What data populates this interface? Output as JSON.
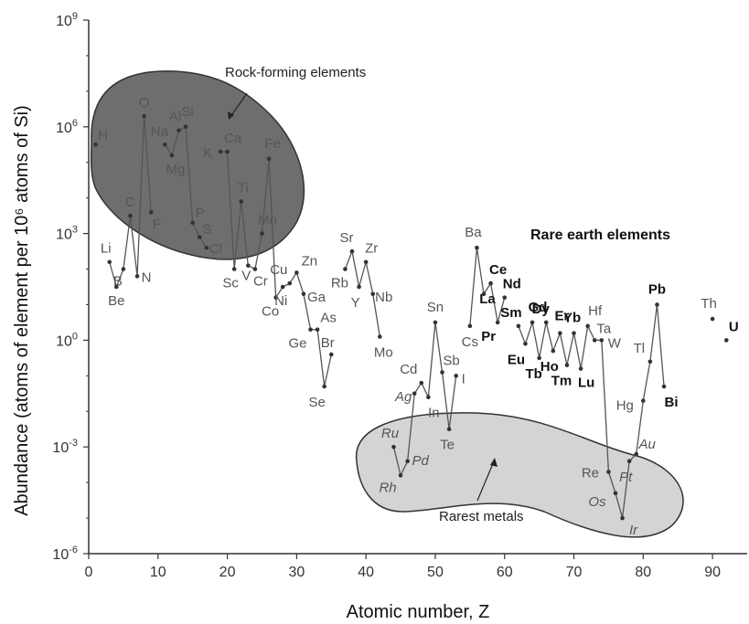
{
  "chart_data": {
    "type": "line",
    "xlabel": "Atomic number, Z",
    "ylabel": "Abundance (atoms of element per 10⁶ atoms of Si)",
    "xlim": [
      0,
      95
    ],
    "ylim_log10": [
      -6,
      9
    ],
    "y_scale": "log",
    "x_ticks": [
      "0",
      "10",
      "20",
      "30",
      "40",
      "50",
      "60",
      "70",
      "80",
      "90"
    ],
    "y_tick_labels": [
      {
        "base": "10",
        "exp": "9"
      },
      {
        "base": "10",
        "exp": "6"
      },
      {
        "base": "10",
        "exp": "3"
      },
      {
        "base": "10",
        "exp": "0"
      },
      {
        "base": "10",
        "exp": "-3"
      },
      {
        "base": "10",
        "exp": "-6"
      }
    ],
    "regions": [
      {
        "label": "Rock-forming elements",
        "fill": "#6e6e6e"
      },
      {
        "label": "Rarest metals",
        "fill": "#d4d4d4"
      }
    ],
    "rare_earth_label": "Rare earth elements",
    "colors": {
      "line": "#555555",
      "point": "#333333",
      "label": "#555555",
      "label_bold": "#111111"
    },
    "elements": [
      {
        "z": 1,
        "symbol": "H",
        "log_abundance": 5.5
      },
      {
        "z": 3,
        "symbol": "Li",
        "log_abundance": 2.2
      },
      {
        "z": 4,
        "symbol": "Be",
        "log_abundance": 1.5
      },
      {
        "z": 5,
        "symbol": "B",
        "log_abundance": 2.0
      },
      {
        "z": 6,
        "symbol": "C",
        "log_abundance": 3.5
      },
      {
        "z": 7,
        "symbol": "N",
        "log_abundance": 1.8
      },
      {
        "z": 8,
        "symbol": "O",
        "log_abundance": 6.3
      },
      {
        "z": 9,
        "symbol": "F",
        "log_abundance": 3.6
      },
      {
        "z": 11,
        "symbol": "Na",
        "log_abundance": 5.5
      },
      {
        "z": 12,
        "symbol": "Mg",
        "log_abundance": 5.2
      },
      {
        "z": 13,
        "symbol": "Al",
        "log_abundance": 5.9
      },
      {
        "z": 14,
        "symbol": "Si",
        "log_abundance": 6.0
      },
      {
        "z": 15,
        "symbol": "P",
        "log_abundance": 3.3
      },
      {
        "z": 16,
        "symbol": "S",
        "log_abundance": 2.9
      },
      {
        "z": 17,
        "symbol": "Cl",
        "log_abundance": 2.6
      },
      {
        "z": 19,
        "symbol": "K",
        "log_abundance": 5.3
      },
      {
        "z": 20,
        "symbol": "Ca",
        "log_abundance": 5.3
      },
      {
        "z": 21,
        "symbol": "Sc",
        "log_abundance": 2.0
      },
      {
        "z": 22,
        "symbol": "Ti",
        "log_abundance": 3.9
      },
      {
        "z": 23,
        "symbol": "V",
        "log_abundance": 2.1
      },
      {
        "z": 24,
        "symbol": "Cr",
        "log_abundance": 2.0
      },
      {
        "z": 25,
        "symbol": "Mn",
        "log_abundance": 3.0
      },
      {
        "z": 26,
        "symbol": "Fe",
        "log_abundance": 5.1
      },
      {
        "z": 27,
        "symbol": "Co",
        "log_abundance": 1.2
      },
      {
        "z": 28,
        "symbol": "Ni",
        "log_abundance": 1.5
      },
      {
        "z": 29,
        "symbol": "Cu",
        "log_abundance": 1.6
      },
      {
        "z": 30,
        "symbol": "Zn",
        "log_abundance": 1.9
      },
      {
        "z": 31,
        "symbol": "Ga",
        "log_abundance": 1.3
      },
      {
        "z": 32,
        "symbol": "Ge",
        "log_abundance": 0.3
      },
      {
        "z": 33,
        "symbol": "As",
        "log_abundance": 0.3
      },
      {
        "z": 34,
        "symbol": "Se",
        "log_abundance": -1.3
      },
      {
        "z": 35,
        "symbol": "Br",
        "log_abundance": -0.4
      },
      {
        "z": 37,
        "symbol": "Rb",
        "log_abundance": 2.0
      },
      {
        "z": 38,
        "symbol": "Sr",
        "log_abundance": 2.5
      },
      {
        "z": 39,
        "symbol": "Y",
        "log_abundance": 1.5
      },
      {
        "z": 40,
        "symbol": "Zr",
        "log_abundance": 2.2
      },
      {
        "z": 41,
        "symbol": "Nb",
        "log_abundance": 1.3
      },
      {
        "z": 42,
        "symbol": "Mo",
        "log_abundance": 0.1
      },
      {
        "z": 47,
        "symbol": "Ag",
        "log_abundance": -1.5,
        "italic": true
      },
      {
        "z": 48,
        "symbol": "Cd",
        "log_abundance": -1.2
      },
      {
        "z": 49,
        "symbol": "In",
        "log_abundance": -1.6
      },
      {
        "z": 50,
        "symbol": "Sn",
        "log_abundance": 0.5
      },
      {
        "z": 51,
        "symbol": "Sb",
        "log_abundance": -0.9
      },
      {
        "z": 52,
        "symbol": "Te",
        "log_abundance": -2.5
      },
      {
        "z": 53,
        "symbol": "I",
        "log_abundance": -1.0
      },
      {
        "z": 55,
        "symbol": "Cs",
        "log_abundance": 0.4
      },
      {
        "z": 56,
        "symbol": "Ba",
        "log_abundance": 2.6
      },
      {
        "z": 57,
        "symbol": "La",
        "log_abundance": 1.3,
        "bold": true
      },
      {
        "z": 58,
        "symbol": "Ce",
        "log_abundance": 1.6,
        "bold": true
      },
      {
        "z": 59,
        "symbol": "Pr",
        "log_abundance": 0.5,
        "bold": true
      },
      {
        "z": 60,
        "symbol": "Nd",
        "log_abundance": 1.2,
        "bold": true
      },
      {
        "z": 62,
        "symbol": "Sm",
        "log_abundance": 0.4,
        "bold": true
      },
      {
        "z": 63,
        "symbol": "Eu",
        "log_abundance": -0.1,
        "bold": true
      },
      {
        "z": 64,
        "symbol": "Gd",
        "log_abundance": 0.5,
        "bold": true
      },
      {
        "z": 65,
        "symbol": "Tb",
        "log_abundance": -0.5,
        "bold": true
      },
      {
        "z": 66,
        "symbol": "Dy",
        "log_abundance": 0.5,
        "bold": true
      },
      {
        "z": 67,
        "symbol": "Ho",
        "log_abundance": -0.3,
        "bold": true
      },
      {
        "z": 68,
        "symbol": "Er",
        "log_abundance": 0.2,
        "bold": true
      },
      {
        "z": 69,
        "symbol": "Tm",
        "log_abundance": -0.7,
        "bold": true
      },
      {
        "z": 70,
        "symbol": "Yb",
        "log_abundance": 0.2,
        "bold": true
      },
      {
        "z": 71,
        "symbol": "Lu",
        "log_abundance": -0.8,
        "bold": true
      },
      {
        "z": 72,
        "symbol": "Hf",
        "log_abundance": 0.4
      },
      {
        "z": 73,
        "symbol": "Ta",
        "log_abundance": 0.0
      },
      {
        "z": 74,
        "symbol": "W",
        "log_abundance": 0.0
      },
      {
        "z": 75,
        "symbol": "Re",
        "log_abundance": -3.7
      },
      {
        "z": 76,
        "symbol": "Os",
        "log_abundance": -4.3,
        "italic": true
      },
      {
        "z": 77,
        "symbol": "Ir",
        "log_abundance": -5.0,
        "italic": true
      },
      {
        "z": 78,
        "symbol": "Pt",
        "log_abundance": -3.4,
        "italic": true
      },
      {
        "z": 79,
        "symbol": "Au",
        "log_abundance": -3.2,
        "italic": true
      },
      {
        "z": 80,
        "symbol": "Hg",
        "log_abundance": -1.7
      },
      {
        "z": 81,
        "symbol": "Tl",
        "log_abundance": -0.6
      },
      {
        "z": 82,
        "symbol": "Pb",
        "log_abundance": 1.0,
        "bold": true
      },
      {
        "z": 83,
        "symbol": "Bi",
        "log_abundance": -1.3,
        "bold": true
      },
      {
        "z": 90,
        "symbol": "Th",
        "log_abundance": 0.6
      },
      {
        "z": 92,
        "symbol": "U",
        "log_abundance": 0.0,
        "bold": true
      }
    ],
    "noble_metal_extra": [
      {
        "z": 44,
        "symbol": "Ru",
        "log_abundance": -3.0,
        "italic": true
      },
      {
        "z": 45,
        "symbol": "Rh",
        "log_abundance": -3.8,
        "italic": true
      },
      {
        "z": 46,
        "symbol": "Pd",
        "log_abundance": -3.4,
        "italic": true
      }
    ]
  }
}
